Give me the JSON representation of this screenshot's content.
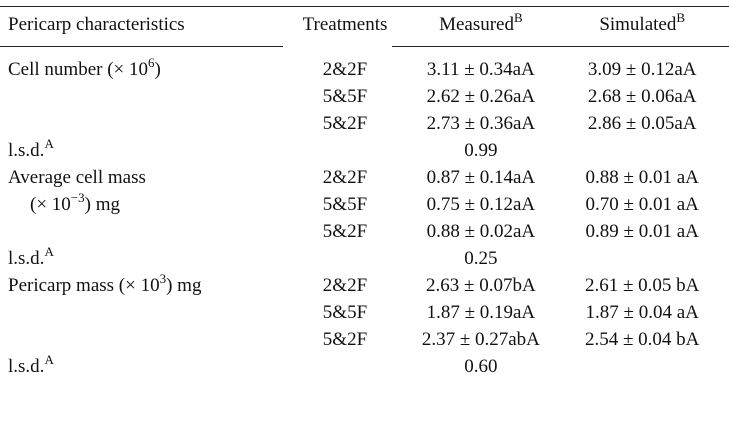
{
  "header": {
    "col1": "Pericarp characteristics",
    "col2": "Treatments",
    "col3_label": "Measured",
    "col3_sup": "B",
    "col4_label": "Simulated",
    "col4_sup": "B"
  },
  "sections": [
    {
      "label_main": "Cell number (× 10",
      "label_sup": "6",
      "label_tail": ")",
      "label_line2": "",
      "rows": [
        {
          "treatment": "2&2F",
          "measured": "3.11 ± 0.34aA",
          "simulated": "3.09 ± 0.12aA"
        },
        {
          "treatment": "5&5F",
          "measured": "2.62 ± 0.26aA",
          "simulated": "2.68 ± 0.06aA"
        },
        {
          "treatment": "5&2F",
          "measured": "2.73 ± 0.36aA",
          "simulated": "2.86 ± 0.05aA"
        }
      ],
      "lsd_label": "l.s.d.",
      "lsd_sup": "A",
      "lsd_value": "0.99"
    },
    {
      "label_main": "Average cell mass",
      "label_sup": "",
      "label_tail": "",
      "label_line2_main": "(× 10",
      "label_line2_sup": "−3",
      "label_line2_tail": ") mg",
      "rows": [
        {
          "treatment": "2&2F",
          "measured": "0.87 ± 0.14aA",
          "simulated": "0.88 ± 0.01 aA"
        },
        {
          "treatment": "5&5F",
          "measured": "0.75 ± 0.12aA",
          "simulated": "0.70 ± 0.01 aA"
        },
        {
          "treatment": "5&2F",
          "measured": "0.88 ± 0.02aA",
          "simulated": "0.89 ± 0.01 aA"
        }
      ],
      "lsd_label": "l.s.d.",
      "lsd_sup": "A",
      "lsd_value": "0.25"
    },
    {
      "label_main": "Pericarp mass (× 10",
      "label_sup": "3",
      "label_tail": ") mg",
      "rows": [
        {
          "treatment": "2&2F",
          "measured": "2.63 ± 0.07bA",
          "simulated": "2.61 ± 0.05 bA"
        },
        {
          "treatment": "5&5F",
          "measured": "1.87 ± 0.19aA",
          "simulated": "1.87 ± 0.04 aA"
        },
        {
          "treatment": "5&2F",
          "measured": "2.37 ± 0.27abA",
          "simulated": "2.54 ± 0.04 bA"
        }
      ],
      "lsd_label": "l.s.d.",
      "lsd_sup": "A",
      "lsd_value": "0.60"
    }
  ]
}
